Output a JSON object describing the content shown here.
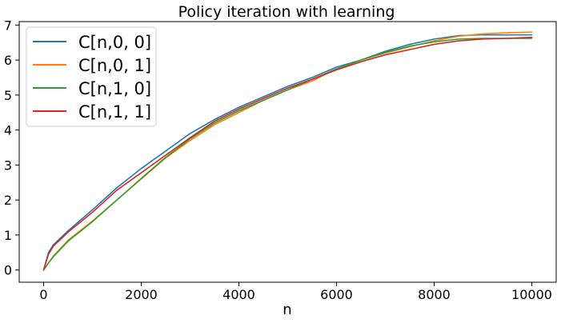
{
  "chart_data": {
    "type": "line",
    "title": "Policy iteration with learning",
    "xlabel": "n",
    "ylabel": "",
    "xlim": [
      -500,
      10500
    ],
    "ylim": [
      -0.35,
      7.1
    ],
    "xticks": [
      0,
      2000,
      4000,
      6000,
      8000,
      10000
    ],
    "yticks": [
      0,
      1,
      2,
      3,
      4,
      5,
      6,
      7
    ],
    "grid": false,
    "legend": "top-left",
    "series": [
      {
        "name": "C[n,0, 0]",
        "color": "#1f77b4",
        "x": [
          0,
          100,
          200,
          500,
          1000,
          1500,
          2000,
          2500,
          3000,
          3500,
          4000,
          4500,
          5000,
          5500,
          6000,
          6500,
          7000,
          7500,
          8000,
          8500,
          9000,
          9500,
          10000
        ],
        "y": [
          0,
          0.5,
          0.72,
          1.12,
          1.72,
          2.35,
          2.9,
          3.4,
          3.9,
          4.3,
          4.65,
          4.95,
          5.25,
          5.5,
          5.8,
          6.0,
          6.25,
          6.45,
          6.6,
          6.7,
          6.72,
          6.72,
          6.72
        ]
      },
      {
        "name": "C[n,0, 1]",
        "color": "#ff7f0e",
        "x": [
          0,
          100,
          200,
          500,
          1000,
          1500,
          2000,
          2500,
          3000,
          3500,
          4000,
          4500,
          5000,
          5500,
          6000,
          6500,
          7000,
          7500,
          8000,
          8500,
          9000,
          9500,
          10000
        ],
        "y": [
          0,
          0.2,
          0.4,
          0.85,
          1.4,
          2.0,
          2.6,
          3.2,
          3.7,
          4.15,
          4.5,
          4.85,
          5.15,
          5.4,
          5.75,
          6.0,
          6.2,
          6.38,
          6.55,
          6.68,
          6.75,
          6.78,
          6.8
        ]
      },
      {
        "name": "C[n,1, 0]",
        "color": "#2ca02c",
        "x": [
          0,
          100,
          200,
          500,
          1000,
          1500,
          2000,
          2500,
          3000,
          3500,
          4000,
          4500,
          5000,
          5500,
          6000,
          6500,
          7000,
          7500,
          8000,
          8500,
          9000,
          9500,
          10000
        ],
        "y": [
          0,
          0.2,
          0.38,
          0.82,
          1.38,
          2.0,
          2.62,
          3.22,
          3.75,
          4.2,
          4.55,
          4.85,
          5.15,
          5.45,
          5.75,
          6.0,
          6.22,
          6.4,
          6.52,
          6.6,
          6.62,
          6.62,
          6.62
        ]
      },
      {
        "name": "C[n,1, 1]",
        "color": "#d62728",
        "x": [
          0,
          100,
          200,
          500,
          1000,
          1500,
          2000,
          2500,
          3000,
          3500,
          4000,
          4500,
          5000,
          5500,
          6000,
          6500,
          7000,
          7500,
          8000,
          8500,
          9000,
          9500,
          10000
        ],
        "y": [
          0,
          0.45,
          0.68,
          1.08,
          1.65,
          2.28,
          2.78,
          3.28,
          3.78,
          4.25,
          4.6,
          4.9,
          5.2,
          5.45,
          5.72,
          5.95,
          6.15,
          6.3,
          6.45,
          6.55,
          6.6,
          6.62,
          6.65
        ]
      }
    ]
  }
}
